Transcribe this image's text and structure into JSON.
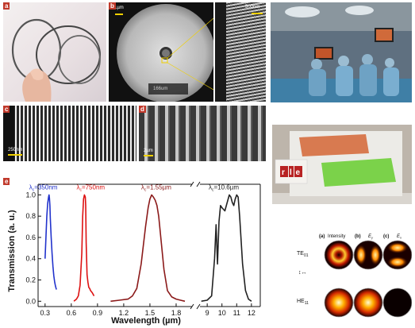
{
  "panel_labels": {
    "a": "a",
    "b": "b",
    "c": "c",
    "d": "d",
    "e": "e"
  },
  "scale_bars": {
    "b_main": "1µm",
    "b_inset": "500nm",
    "b_lower": "166um",
    "c": "250nm",
    "d": "2µm"
  },
  "modes": {
    "col_headers": [
      "(a)",
      "Intensity",
      "(b)",
      "(c)"
    ],
    "ey": "E",
    "ey_sub": "y",
    "ex": "E",
    "ex_sub": "x",
    "row1_main": "TE",
    "row1_sub": "01",
    "row2_main": "HE",
    "row2_sub": "11"
  },
  "rle": {
    "r": "r",
    "l": "l",
    "e": "e"
  },
  "colors": {
    "blue": "#2233cc",
    "red": "#dd1111",
    "darkred": "#8b1a1a",
    "black": "#222222",
    "label_bg": "#c0392b"
  },
  "chart_data": {
    "type": "line",
    "xlabel": "Wavelength (µm)",
    "ylabel": "Transmission (a. u.)",
    "ylim": [
      -0.05,
      1.1
    ],
    "yticks": [
      0.0,
      0.2,
      0.4,
      0.6,
      0.8,
      1.0
    ],
    "x_axis_break": true,
    "xticks_left": [
      0.3,
      0.6,
      0.9,
      1.2,
      1.5,
      1.8
    ],
    "xticks_right": [
      9,
      10,
      11,
      12
    ],
    "right_segment_start": "12 (partial)",
    "series": [
      {
        "name": "λc=350nm",
        "label_main": "λ",
        "label_sub": "c",
        "label_val": "=350nm",
        "color": "#2233cc",
        "x": [
          0.3,
          0.31,
          0.32,
          0.33,
          0.34,
          0.345,
          0.35,
          0.355,
          0.36,
          0.37,
          0.38,
          0.39,
          0.4,
          0.41,
          0.42,
          0.43
        ],
        "y": [
          0.4,
          0.6,
          0.8,
          0.92,
          0.98,
          1.0,
          0.97,
          0.9,
          0.78,
          0.6,
          0.45,
          0.33,
          0.24,
          0.18,
          0.14,
          0.11
        ]
      },
      {
        "name": "λc=750nm",
        "label_main": "λ",
        "label_sub": "c",
        "label_val": "=750nm",
        "color": "#dd1111",
        "x": [
          0.63,
          0.66,
          0.68,
          0.7,
          0.72,
          0.73,
          0.74,
          0.75,
          0.76,
          0.765,
          0.77,
          0.78,
          0.79,
          0.8,
          0.81,
          0.82,
          0.84,
          0.86
        ],
        "y": [
          0.0,
          0.02,
          0.05,
          0.15,
          0.45,
          0.8,
          0.96,
          1.0,
          0.98,
          0.9,
          0.55,
          0.25,
          0.18,
          0.13,
          0.12,
          0.1,
          0.08,
          0.05
        ]
      },
      {
        "name": "λc=1.55µm",
        "label_main": "λ",
        "label_sub": "c",
        "label_val": "=1.55µm",
        "color": "#8b1a1a",
        "x": [
          1.05,
          1.15,
          1.25,
          1.3,
          1.35,
          1.4,
          1.45,
          1.48,
          1.5,
          1.52,
          1.54,
          1.56,
          1.58,
          1.6,
          1.63,
          1.66,
          1.7,
          1.75,
          1.8,
          1.85,
          1.9
        ],
        "y": [
          0.0,
          0.01,
          0.02,
          0.05,
          0.12,
          0.35,
          0.7,
          0.88,
          0.96,
          1.0,
          0.98,
          0.95,
          0.9,
          0.8,
          0.55,
          0.3,
          0.1,
          0.04,
          0.02,
          0.01,
          0.0
        ]
      },
      {
        "name": "λc=10.6µm",
        "label_main": "λ",
        "label_sub": "c",
        "label_val": "=10.6µm",
        "color": "#222222",
        "x": [
          8.6,
          9.0,
          9.3,
          9.5,
          9.6,
          9.7,
          9.8,
          9.9,
          10.0,
          10.2,
          10.4,
          10.5,
          10.6,
          10.7,
          10.8,
          10.9,
          11.0,
          11.1,
          11.2,
          11.4,
          11.6,
          11.8,
          12.0
        ],
        "y": [
          0.0,
          0.01,
          0.05,
          0.4,
          0.72,
          0.35,
          0.75,
          0.9,
          0.88,
          0.85,
          0.95,
          1.0,
          0.98,
          0.93,
          0.9,
          0.96,
          1.0,
          0.98,
          0.8,
          0.35,
          0.1,
          0.02,
          0.0
        ]
      }
    ]
  }
}
